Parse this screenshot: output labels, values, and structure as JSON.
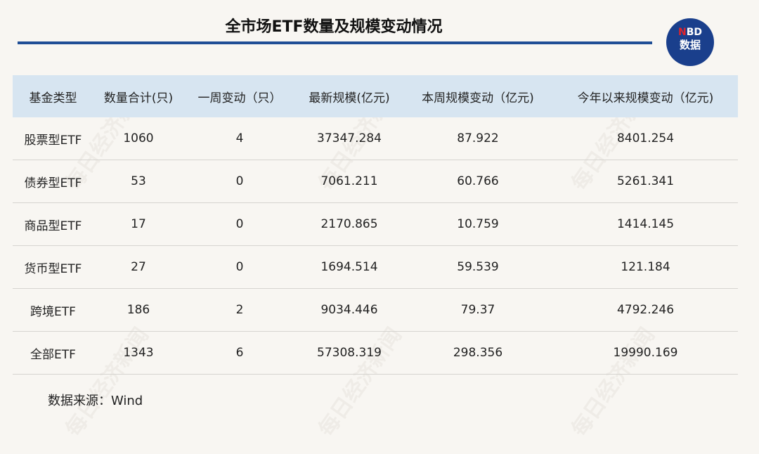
{
  "title": "全市场ETF数量及规模变动情况",
  "logo": {
    "line1_accent": "N",
    "line1_rest": "BD",
    "line2": "数据"
  },
  "watermark": "每日经济新闻",
  "table": {
    "headers": [
      "基金类型",
      "数量合计(只)",
      "一周变动（只）",
      "最新规模(亿元)",
      "本周规模变动（亿元)",
      "今年以来规模变动（亿元)"
    ],
    "rows": [
      [
        "股票型ETF",
        "1060",
        "4",
        "37347.284",
        "87.922",
        "8401.254"
      ],
      [
        "债券型ETF",
        "53",
        "0",
        "7061.211",
        "60.766",
        "5261.341"
      ],
      [
        "商品型ETF",
        "17",
        "0",
        "2170.865",
        "10.759",
        "1414.145"
      ],
      [
        "货币型ETF",
        "27",
        "0",
        "1694.514",
        "59.539",
        "121.184"
      ],
      [
        "跨境ETF",
        "186",
        "2",
        "9034.446",
        "79.37",
        "4792.246"
      ],
      [
        "全部ETF",
        "1343",
        "6",
        "57308.319",
        "298.356",
        "19990.169"
      ]
    ]
  },
  "source": "数据来源：Wind",
  "colors": {
    "accent": "#1f4e96",
    "header_bg": "#d7e5f1",
    "logo_bg": "#1a3f8c",
    "logo_red": "#e0242b"
  }
}
